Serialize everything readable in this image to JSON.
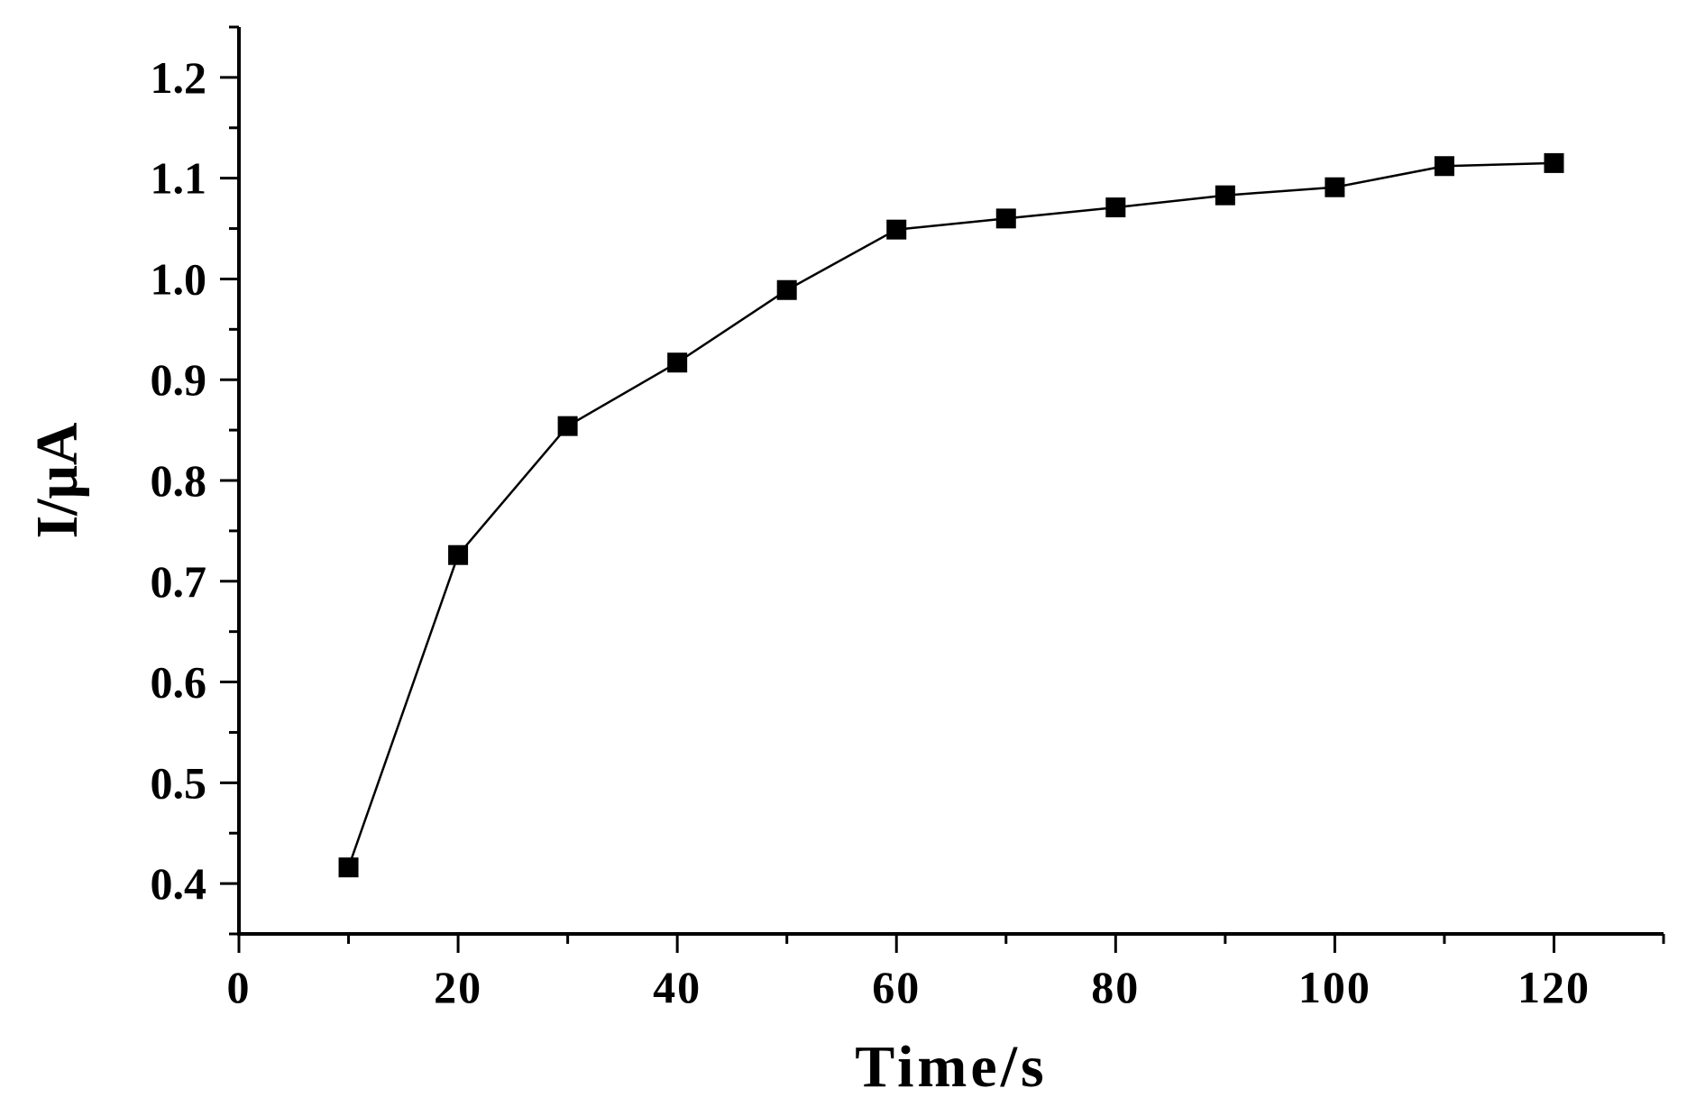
{
  "chart_data": {
    "type": "line",
    "title": "",
    "xlabel": "Time/s",
    "ylabel": "I/μA",
    "xlim": [
      0,
      130
    ],
    "ylim": [
      0.35,
      1.25
    ],
    "x_ticks": [
      0,
      20,
      40,
      60,
      80,
      100,
      120
    ],
    "x_tick_labels": [
      "0",
      "20",
      "40",
      "60",
      "80",
      "100",
      "120"
    ],
    "x_minor_step": 10,
    "y_ticks": [
      0.4,
      0.5,
      0.6,
      0.7,
      0.8,
      0.9,
      1.0,
      1.1,
      1.2
    ],
    "y_tick_labels": [
      "0.4",
      "0.5",
      "0.6",
      "0.7",
      "0.8",
      "0.9",
      "1.0",
      "1.1",
      "1.2"
    ],
    "y_minor_step": 0.05,
    "grid": false,
    "legend": "none",
    "marker": "square",
    "color": "#000000",
    "series": [
      {
        "x": [
          10,
          20,
          30,
          40,
          50,
          60,
          70,
          80,
          90,
          100,
          110,
          120
        ],
        "y": [
          0.416,
          0.726,
          0.854,
          0.917,
          0.989,
          1.049,
          1.06,
          1.071,
          1.083,
          1.091,
          1.112,
          1.115
        ]
      }
    ]
  }
}
